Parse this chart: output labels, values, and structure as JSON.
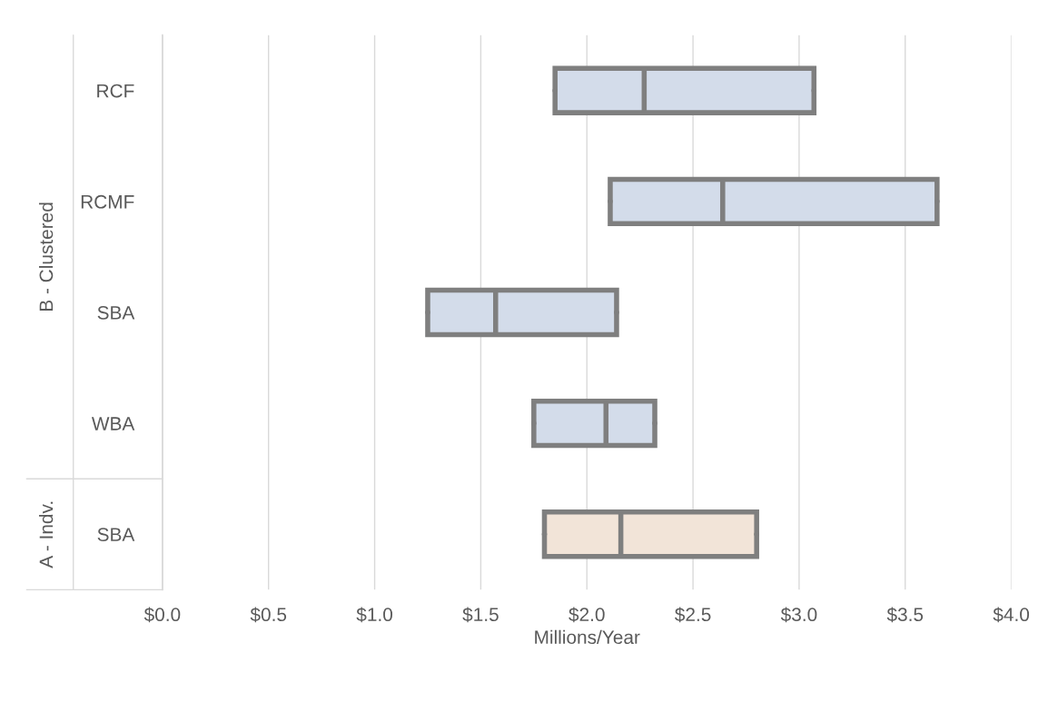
{
  "chart_data": {
    "type": "box",
    "orientation": "horizontal",
    "xlabel": "Millions/Year",
    "categories": [
      "RCF",
      "RCMF",
      "SBA",
      "WBA",
      "SBA"
    ],
    "boxes": [
      {
        "low": 1.85,
        "q1": 1.85,
        "median": 2.27,
        "q3": 3.07,
        "high": 3.07
      },
      {
        "low": 2.11,
        "q1": 2.11,
        "median": 2.64,
        "q3": 3.65,
        "high": 3.65
      },
      {
        "low": 1.25,
        "q1": 1.25,
        "median": 1.57,
        "q3": 2.14,
        "high": 2.14
      },
      {
        "low": 1.75,
        "q1": 1.75,
        "median": 2.09,
        "q3": 2.32,
        "high": 2.32
      },
      {
        "low": 1.8,
        "q1": 1.8,
        "median": 2.16,
        "q3": 2.8,
        "high": 2.8
      }
    ],
    "colors": [
      "#d3dcea",
      "#d3dcea",
      "#d3dcea",
      "#d3dcea",
      "#f2e4d8"
    ],
    "annotations": [
      "B - Clustered",
      "A - Indv."
    ],
    "xlim": [
      0,
      4
    ],
    "xticks": [
      {
        "value": 0,
        "label": "$0.0"
      },
      {
        "value": 0.5,
        "label": "$0.5"
      },
      {
        "value": 1,
        "label": "$1.0"
      },
      {
        "value": 1.5,
        "label": "$1.5"
      },
      {
        "value": 2,
        "label": "$2.0"
      },
      {
        "value": 2.5,
        "label": "$2.5"
      },
      {
        "value": 3,
        "label": "$3.0"
      },
      {
        "value": 3.5,
        "label": "$3.5"
      },
      {
        "value": 4,
        "label": "$4.0"
      }
    ],
    "grid": "x",
    "legend": false
  }
}
